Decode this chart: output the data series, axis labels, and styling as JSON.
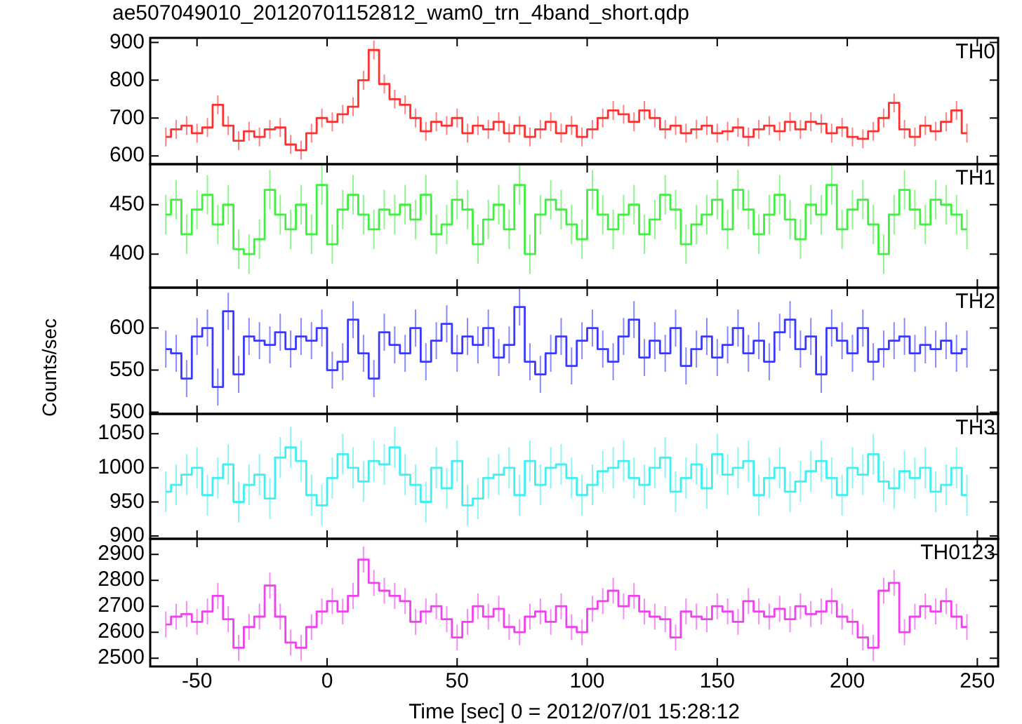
{
  "chart_data": [
    {
      "type": "step",
      "title": "ae507049010_20120701152812_wam0_trn_4band_short.qdp",
      "marker": "none",
      "legend": false,
      "grid": false,
      "tick_labels": "y",
      "xlim": [
        -68,
        258
      ],
      "xticks": [
        -50,
        0,
        50,
        100,
        150,
        200,
        250
      ],
      "ylim": [
        578,
        912
      ],
      "yticks": [
        600,
        700,
        800,
        900
      ],
      "x": [
        -62,
        -58,
        -54,
        -50,
        -46,
        -42,
        -38,
        -34,
        -30,
        -26,
        -22,
        -18,
        -14,
        -10,
        -6,
        -2,
        2,
        6,
        10,
        14,
        18,
        22,
        26,
        30,
        34,
        38,
        42,
        46,
        50,
        54,
        58,
        62,
        66,
        70,
        74,
        78,
        82,
        86,
        90,
        94,
        98,
        102,
        106,
        110,
        114,
        118,
        122,
        126,
        130,
        134,
        138,
        142,
        146,
        150,
        154,
        158,
        162,
        166,
        170,
        174,
        178,
        182,
        186,
        190,
        194,
        198,
        202,
        206,
        210,
        214,
        218,
        222,
        226,
        230,
        234,
        238,
        242,
        246
      ],
      "series": [
        {
          "name": "TH0",
          "color": "#ff3030",
          "errors": [
            25,
            25,
            25,
            25,
            25,
            25,
            25,
            25,
            25,
            25,
            25,
            25,
            25,
            25,
            25,
            25,
            25,
            25,
            25,
            25,
            25,
            25,
            25,
            25,
            25,
            25,
            25,
            25,
            25,
            25,
            25,
            25,
            25,
            25,
            25,
            25,
            25,
            25,
            25,
            25,
            25,
            25,
            25,
            25,
            25,
            25,
            25,
            25,
            25,
            25,
            25,
            25,
            25,
            25,
            25,
            25,
            25,
            25,
            25,
            25,
            25,
            25,
            25,
            25,
            25,
            25,
            25,
            25,
            25,
            25,
            25,
            25,
            25,
            25,
            25,
            25,
            25,
            25
          ],
          "values": [
            650,
            670,
            680,
            660,
            675,
            735,
            680,
            640,
            665,
            650,
            670,
            675,
            630,
            615,
            660,
            700,
            690,
            710,
            730,
            800,
            880,
            790,
            750,
            735,
            700,
            665,
            690,
            680,
            700,
            660,
            680,
            670,
            690,
            660,
            680,
            650,
            670,
            690,
            660,
            680,
            650,
            670,
            700,
            720,
            710,
            690,
            720,
            700,
            670,
            680,
            660,
            670,
            680,
            660,
            665,
            675,
            650,
            670,
            680,
            665,
            690,
            670,
            690,
            685,
            660,
            675,
            650,
            645,
            665,
            700,
            740,
            670,
            650,
            680,
            665,
            690,
            720,
            660
          ]
        }
      ]
    },
    {
      "type": "step",
      "marker": "none",
      "legend": false,
      "grid": false,
      "tick_labels": "y",
      "xlim": [
        -68,
        258
      ],
      "xticks": [
        -50,
        0,
        50,
        100,
        150,
        200,
        250
      ],
      "ylim": [
        366,
        491
      ],
      "yticks": [
        400,
        450
      ],
      "x": [
        -62,
        -58,
        -54,
        -50,
        -46,
        -42,
        -38,
        -34,
        -30,
        -26,
        -22,
        -18,
        -14,
        -10,
        -6,
        -2,
        2,
        6,
        10,
        14,
        18,
        22,
        26,
        30,
        34,
        38,
        42,
        46,
        50,
        54,
        58,
        62,
        66,
        70,
        74,
        78,
        82,
        86,
        90,
        94,
        98,
        102,
        106,
        110,
        114,
        118,
        122,
        126,
        130,
        134,
        138,
        142,
        146,
        150,
        154,
        158,
        162,
        166,
        170,
        174,
        178,
        182,
        186,
        190,
        194,
        198,
        202,
        206,
        210,
        214,
        218,
        222,
        226,
        230,
        234,
        238,
        242,
        246
      ],
      "series": [
        {
          "name": "TH1",
          "color": "#40f040",
          "errors": [
            20,
            20,
            20,
            20,
            20,
            20,
            20,
            20,
            20,
            20,
            20,
            20,
            20,
            20,
            20,
            20,
            20,
            20,
            20,
            20,
            20,
            20,
            20,
            20,
            20,
            20,
            20,
            20,
            20,
            20,
            20,
            20,
            20,
            20,
            20,
            20,
            20,
            20,
            20,
            20,
            20,
            20,
            20,
            20,
            20,
            20,
            20,
            20,
            20,
            20,
            20,
            20,
            20,
            20,
            20,
            20,
            20,
            20,
            20,
            20,
            20,
            20,
            20,
            20,
            20,
            20,
            20,
            20,
            20,
            20,
            20,
            20,
            20,
            20,
            20,
            20,
            20,
            20
          ],
          "values": [
            440,
            455,
            420,
            445,
            460,
            430,
            450,
            405,
            400,
            415,
            465,
            440,
            425,
            450,
            420,
            470,
            410,
            445,
            460,
            440,
            425,
            445,
            440,
            450,
            435,
            460,
            420,
            430,
            455,
            445,
            410,
            435,
            450,
            425,
            470,
            400,
            440,
            455,
            445,
            430,
            415,
            465,
            440,
            425,
            440,
            450,
            420,
            435,
            460,
            445,
            410,
            430,
            440,
            455,
            425,
            465,
            445,
            420,
            440,
            460,
            435,
            415,
            450,
            440,
            470,
            425,
            445,
            455,
            430,
            400,
            440,
            465,
            445,
            430,
            455,
            450,
            440,
            425
          ]
        }
      ]
    },
    {
      "type": "step",
      "ylabel": "Counts/sec",
      "marker": "none",
      "legend": false,
      "grid": false,
      "tick_labels": "y",
      "xlim": [
        -68,
        258
      ],
      "xticks": [
        -50,
        0,
        50,
        100,
        150,
        200,
        250
      ],
      "ylim": [
        498,
        648
      ],
      "yticks": [
        500,
        550,
        600
      ],
      "x": [
        -62,
        -58,
        -54,
        -50,
        -46,
        -42,
        -38,
        -34,
        -30,
        -26,
        -22,
        -18,
        -14,
        -10,
        -6,
        -2,
        2,
        6,
        10,
        14,
        18,
        22,
        26,
        30,
        34,
        38,
        42,
        46,
        50,
        54,
        58,
        62,
        66,
        70,
        74,
        78,
        82,
        86,
        90,
        94,
        98,
        102,
        106,
        110,
        114,
        118,
        122,
        126,
        130,
        134,
        138,
        142,
        146,
        150,
        154,
        158,
        162,
        166,
        170,
        174,
        178,
        182,
        186,
        190,
        194,
        198,
        202,
        206,
        210,
        214,
        218,
        222,
        226,
        230,
        234,
        238,
        242,
        246
      ],
      "series": [
        {
          "name": "TH2",
          "color": "#3a3aff",
          "errors": [
            22,
            22,
            22,
            22,
            22,
            22,
            22,
            22,
            22,
            22,
            22,
            22,
            22,
            22,
            22,
            22,
            22,
            22,
            22,
            22,
            22,
            22,
            22,
            22,
            22,
            22,
            22,
            22,
            22,
            22,
            22,
            22,
            22,
            22,
            22,
            22,
            22,
            22,
            22,
            22,
            22,
            22,
            22,
            22,
            22,
            22,
            22,
            22,
            22,
            22,
            22,
            22,
            22,
            22,
            22,
            22,
            22,
            22,
            22,
            22,
            22,
            22,
            22,
            22,
            22,
            22,
            22,
            22,
            22,
            22,
            22,
            22,
            22,
            22,
            22,
            22,
            22,
            22
          ],
          "values": [
            575,
            570,
            540,
            590,
            600,
            530,
            620,
            545,
            590,
            585,
            580,
            595,
            575,
            590,
            585,
            600,
            550,
            560,
            610,
            570,
            540,
            595,
            580,
            570,
            600,
            560,
            585,
            605,
            570,
            590,
            580,
            600,
            565,
            580,
            625,
            560,
            545,
            570,
            590,
            555,
            585,
            600,
            575,
            560,
            590,
            610,
            565,
            585,
            570,
            600,
            555,
            575,
            590,
            565,
            580,
            600,
            570,
            585,
            560,
            595,
            610,
            575,
            590,
            545,
            600,
            585,
            570,
            600,
            560,
            575,
            585,
            590,
            570,
            580,
            575,
            585,
            570,
            575
          ]
        }
      ]
    },
    {
      "type": "step",
      "marker": "none",
      "legend": false,
      "grid": false,
      "tick_labels": "y",
      "xlim": [
        -68,
        258
      ],
      "xticks": [
        -50,
        0,
        50,
        100,
        150,
        200,
        250
      ],
      "ylim": [
        896,
        1079
      ],
      "yticks": [
        900,
        950,
        1000,
        1050
      ],
      "x": [
        -62,
        -58,
        -54,
        -50,
        -46,
        -42,
        -38,
        -34,
        -30,
        -26,
        -22,
        -18,
        -14,
        -10,
        -6,
        -2,
        2,
        6,
        10,
        14,
        18,
        22,
        26,
        30,
        34,
        38,
        42,
        46,
        50,
        54,
        58,
        62,
        66,
        70,
        74,
        78,
        82,
        86,
        90,
        94,
        98,
        102,
        106,
        110,
        114,
        118,
        122,
        126,
        130,
        134,
        138,
        142,
        146,
        150,
        154,
        158,
        162,
        166,
        170,
        174,
        178,
        182,
        186,
        190,
        194,
        198,
        202,
        206,
        210,
        214,
        218,
        222,
        226,
        230,
        234,
        238,
        242,
        246
      ],
      "series": [
        {
          "name": "TH3",
          "color": "#40f0f0",
          "errors": [
            30,
            30,
            30,
            30,
            30,
            30,
            30,
            30,
            30,
            30,
            30,
            30,
            30,
            30,
            30,
            30,
            30,
            30,
            30,
            30,
            30,
            30,
            30,
            30,
            30,
            30,
            30,
            30,
            30,
            30,
            30,
            30,
            30,
            30,
            30,
            30,
            30,
            30,
            30,
            30,
            30,
            30,
            30,
            30,
            30,
            30,
            30,
            30,
            30,
            30,
            30,
            30,
            30,
            30,
            30,
            30,
            30,
            30,
            30,
            30,
            30,
            30,
            30,
            30,
            30,
            30,
            30,
            30,
            30,
            30,
            30,
            30,
            30,
            30,
            30,
            30,
            30,
            30
          ],
          "values": [
            965,
            975,
            990,
            1000,
            960,
            985,
            1005,
            950,
            975,
            990,
            955,
            1015,
            1030,
            1010,
            960,
            945,
            985,
            1020,
            1000,
            980,
            1010,
            1005,
            1030,
            990,
            975,
            950,
            1000,
            970,
            1010,
            945,
            955,
            985,
            990,
            1000,
            960,
            1010,
            975,
            1000,
            1005,
            985,
            960,
            975,
            995,
            1000,
            1010,
            985,
            975,
            1000,
            1015,
            965,
            985,
            1005,
            970,
            1020,
            990,
            1000,
            1010,
            960,
            985,
            1000,
            965,
            980,
            995,
            1010,
            985,
            960,
            1000,
            990,
            1020,
            980,
            970,
            995,
            985,
            1000,
            965,
            975,
            1000,
            960
          ]
        }
      ]
    },
    {
      "type": "step",
      "xlabel": "Time [sec] 0 = 2012/07/01 15:28:12",
      "marker": "none",
      "legend": false,
      "grid": false,
      "xlim": [
        -68,
        258
      ],
      "xticks": [
        -50,
        0,
        50,
        100,
        150,
        200,
        250
      ],
      "ylim": [
        2468,
        2960
      ],
      "yticks": [
        2500,
        2600,
        2700,
        2800,
        2900
      ],
      "x": [
        -62,
        -58,
        -54,
        -50,
        -46,
        -42,
        -38,
        -34,
        -30,
        -26,
        -22,
        -18,
        -14,
        -10,
        -6,
        -2,
        2,
        6,
        10,
        14,
        18,
        22,
        26,
        30,
        34,
        38,
        42,
        46,
        50,
        54,
        58,
        62,
        66,
        70,
        74,
        78,
        82,
        86,
        90,
        94,
        98,
        102,
        106,
        110,
        114,
        118,
        122,
        126,
        130,
        134,
        138,
        142,
        146,
        150,
        154,
        158,
        162,
        166,
        170,
        174,
        178,
        182,
        186,
        190,
        194,
        198,
        202,
        206,
        210,
        214,
        218,
        222,
        226,
        230,
        234,
        238,
        242,
        246
      ],
      "series": [
        {
          "name": "TH0123",
          "color": "#f040f0",
          "errors": [
            50,
            50,
            50,
            50,
            50,
            50,
            50,
            50,
            50,
            50,
            50,
            50,
            50,
            50,
            50,
            50,
            50,
            50,
            50,
            50,
            50,
            50,
            50,
            50,
            50,
            50,
            50,
            50,
            50,
            50,
            50,
            50,
            50,
            50,
            50,
            50,
            50,
            50,
            50,
            50,
            50,
            50,
            50,
            50,
            50,
            50,
            50,
            50,
            50,
            50,
            50,
            50,
            50,
            50,
            50,
            50,
            50,
            50,
            50,
            50,
            50,
            50,
            50,
            50,
            50,
            50,
            50,
            50,
            50,
            50,
            50,
            50,
            50,
            50,
            50,
            50,
            50,
            50
          ],
          "values": [
            2630,
            2660,
            2670,
            2640,
            2680,
            2740,
            2650,
            2540,
            2620,
            2660,
            2780,
            2660,
            2560,
            2540,
            2620,
            2680,
            2720,
            2680,
            2740,
            2880,
            2790,
            2760,
            2740,
            2720,
            2640,
            2680,
            2700,
            2650,
            2580,
            2640,
            2700,
            2660,
            2690,
            2620,
            2600,
            2660,
            2680,
            2640,
            2700,
            2620,
            2600,
            2690,
            2720,
            2760,
            2700,
            2740,
            2680,
            2660,
            2650,
            2580,
            2680,
            2660,
            2650,
            2700,
            2680,
            2640,
            2720,
            2680,
            2660,
            2690,
            2650,
            2700,
            2670,
            2680,
            2720,
            2660,
            2640,
            2580,
            2540,
            2760,
            2790,
            2600,
            2660,
            2700,
            2680,
            2720,
            2660,
            2620
          ]
        }
      ]
    }
  ]
}
